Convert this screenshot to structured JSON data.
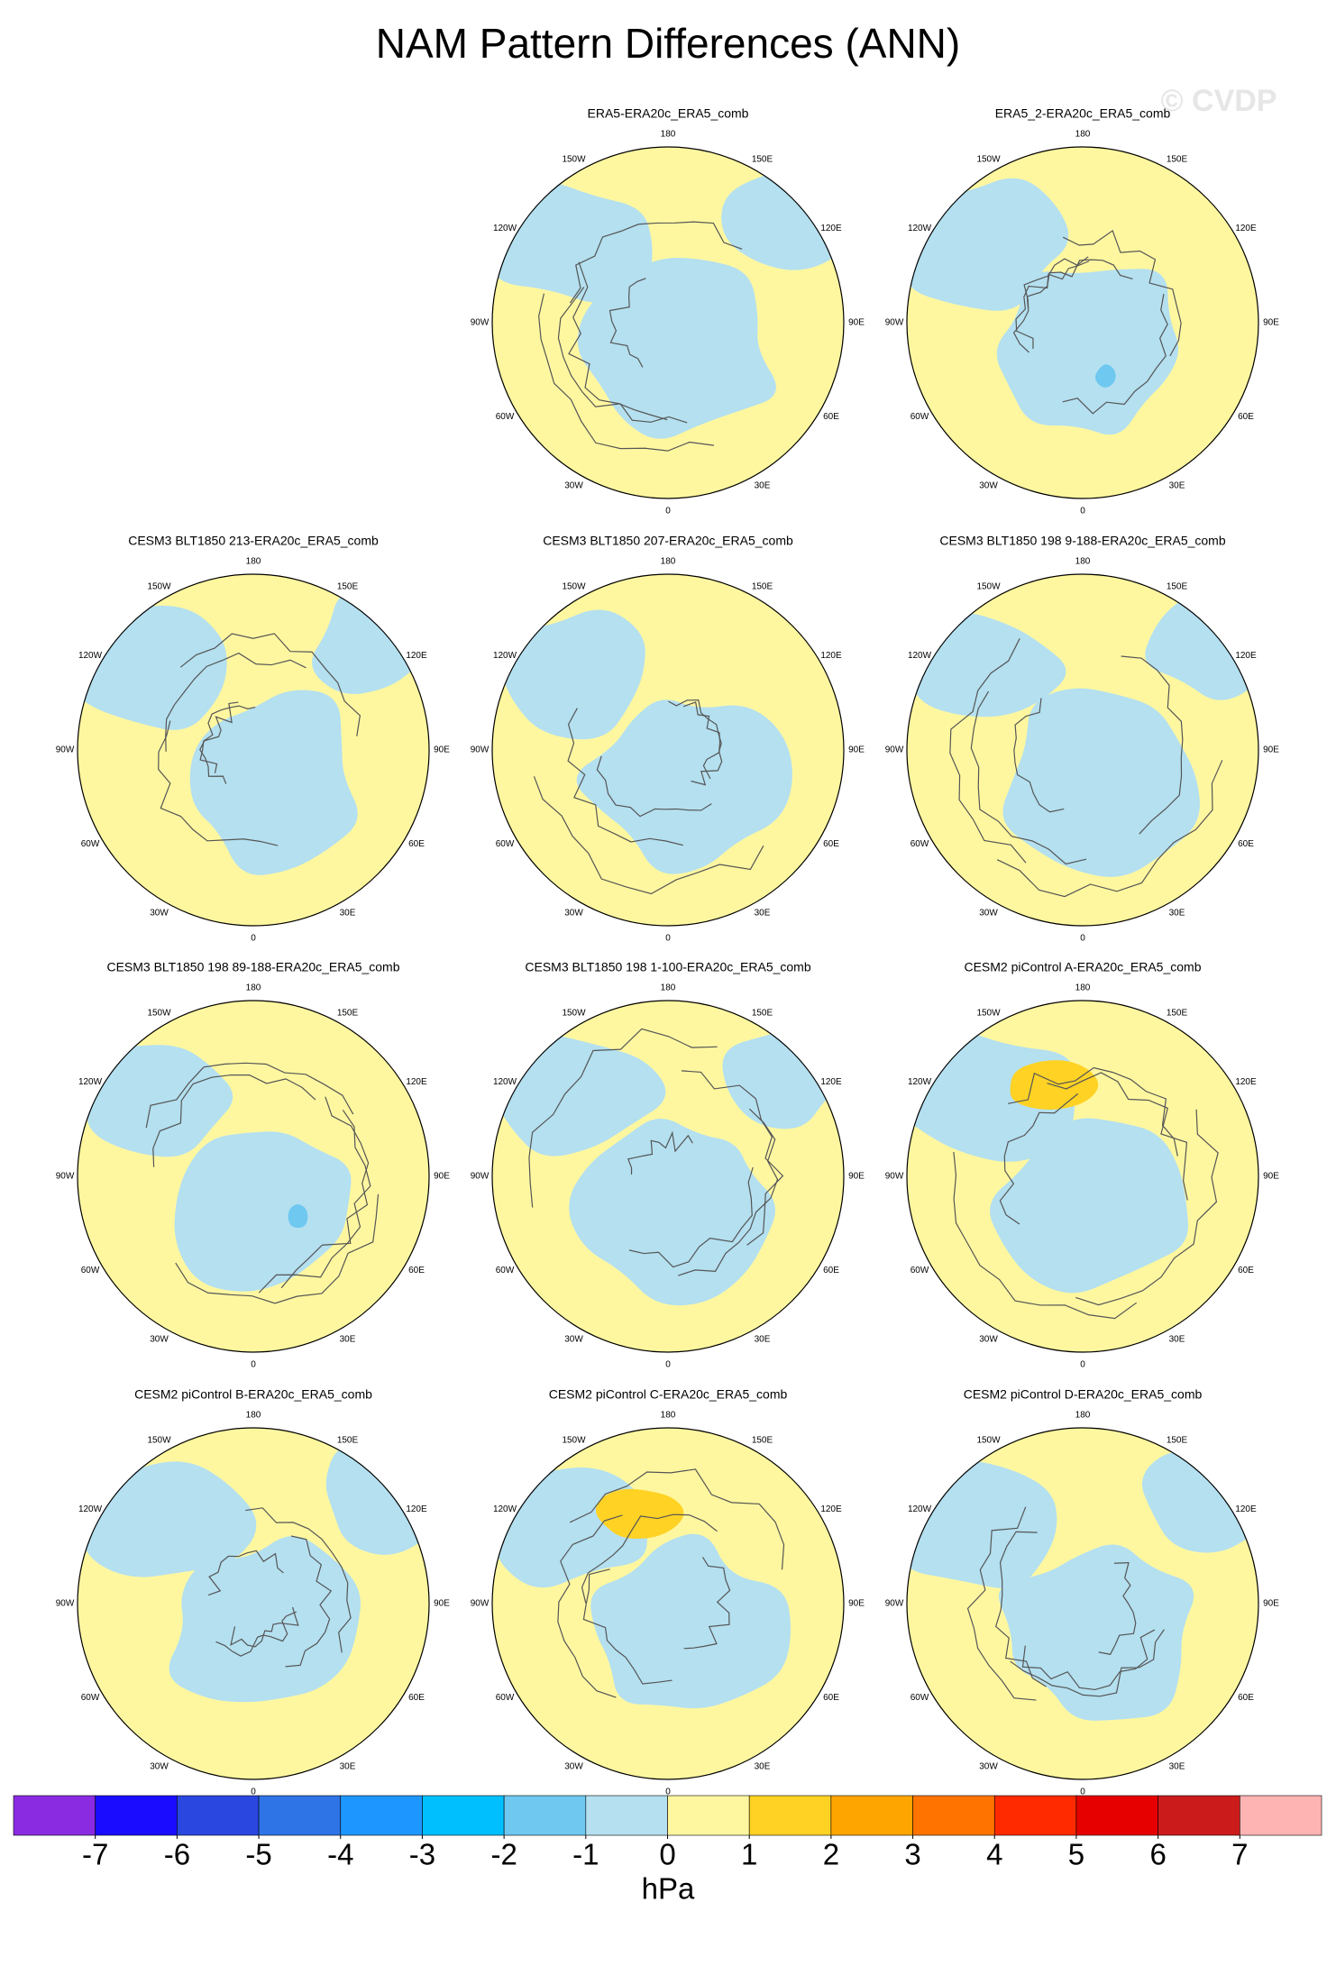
{
  "title": "NAM Pattern Differences (ANN)",
  "watermark": "© CVDP",
  "longitude_labels": [
    "180",
    "150E",
    "120E",
    "90E",
    "60E",
    "30E",
    "0",
    "30W",
    "60W",
    "90W",
    "120W",
    "150W"
  ],
  "panels": [
    "ERA5-ERA20c_ERA5_comb",
    "ERA5_2-ERA20c_ERA5_comb",
    "CESM3 BLT1850 213-ERA20c_ERA5_comb",
    "CESM3 BLT1850 207-ERA20c_ERA5_comb",
    "CESM3 BLT1850 198 9-188-ERA20c_ERA5_comb",
    "CESM3 BLT1850 198 89-188-ERA20c_ERA5_comb",
    "CESM3 BLT1850 198 1-100-ERA20c_ERA5_comb",
    "CESM2 piControl A-ERA20c_ERA5_comb",
    "CESM2 piControl B-ERA20c_ERA5_comb",
    "CESM2 piControl C-ERA20c_ERA5_comb",
    "CESM2 piControl D-ERA20c_ERA5_comb"
  ],
  "colorbar": {
    "colors": [
      "#8a2be2",
      "#1a0dff",
      "#2a47e0",
      "#2f74e6",
      "#1e96ff",
      "#00bfff",
      "#6ec8f0",
      "#b4e0f0",
      "#fff7a0",
      "#ffd224",
      "#ffa500",
      "#ff7400",
      "#ff2a00",
      "#e60000",
      "#cc1b1b",
      "#ffb4b4"
    ],
    "ticks": [
      -7,
      -6,
      -5,
      -4,
      -3,
      -2,
      -1,
      0,
      1,
      2,
      3,
      4,
      5,
      6,
      7
    ],
    "label": "hPa"
  }
}
